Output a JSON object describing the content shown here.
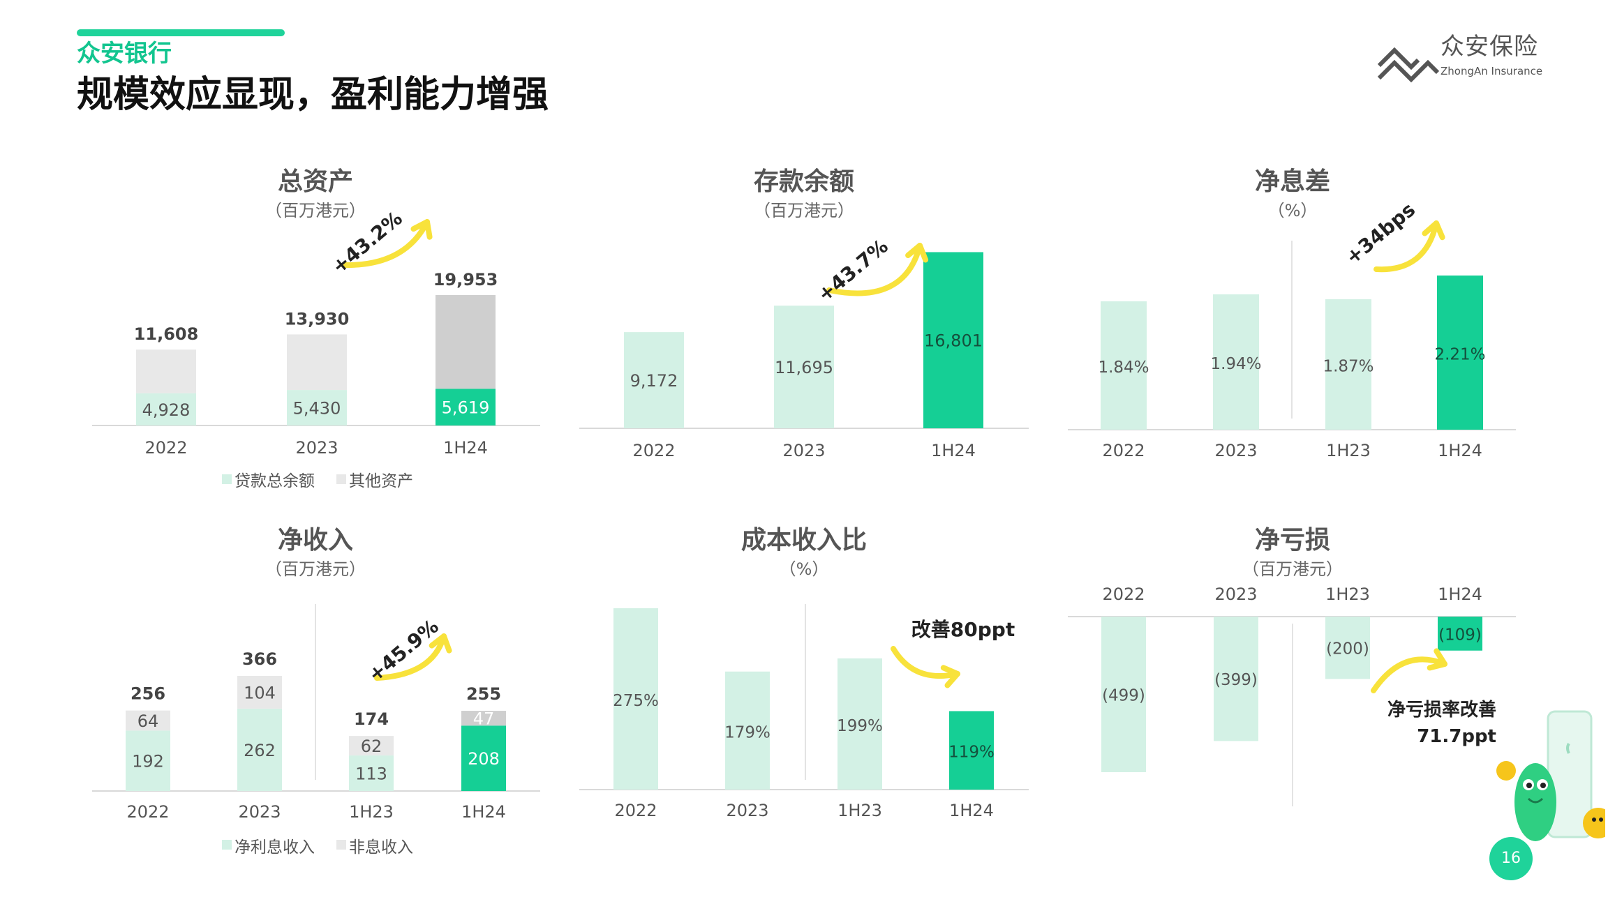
{
  "header": {
    "bank_name": "众安银行",
    "title": "规模效应显现，盈利能力增强"
  },
  "logo": {
    "chinese": "众安保险",
    "english": "ZhongAn Insurance"
  },
  "page_number": "16",
  "colors": {
    "accent": "#1fd39a",
    "dark_green": "#15cf95",
    "light_green": "#d3f1e5",
    "light_gray": "#e8e8e8",
    "mid_gray": "#cfcfcf",
    "arrow_yellow": "#f8e23b",
    "axis": "#d9d9d9"
  },
  "chart_data": [
    {
      "type": "bar",
      "stacked": true,
      "title": "总资产",
      "subtitle": "（百万港元）",
      "categories": [
        "2022",
        "2023",
        "1H24"
      ],
      "totals": [
        "11,608",
        "13,930",
        "19,953"
      ],
      "series": [
        {
          "name": "贷款总余额",
          "values": [
            4928,
            5430,
            5619
          ],
          "labels": [
            "4,928",
            "5,430",
            "5,619"
          ]
        },
        {
          "name": "其他资产",
          "values": [
            6680,
            8500,
            14334
          ]
        }
      ],
      "legend": [
        "贷款总余额",
        "其他资产"
      ],
      "annotation": "+43.2%"
    },
    {
      "type": "bar",
      "title": "存款余额",
      "subtitle": "（百万港元）",
      "categories": [
        "2022",
        "2023",
        "1H24"
      ],
      "values": [
        9172,
        11695,
        16801
      ],
      "labels": [
        "9,172",
        "11,695",
        "16,801"
      ],
      "annotation": "+43.7%"
    },
    {
      "type": "bar",
      "title": "净息差",
      "subtitle": "（%）",
      "categories": [
        "2022",
        "2023",
        "1H23",
        "1H24"
      ],
      "values": [
        1.84,
        1.94,
        1.87,
        2.21
      ],
      "labels": [
        "1.84%",
        "1.94%",
        "1.87%",
        "2.21%"
      ],
      "annotation": "+34bps"
    },
    {
      "type": "bar",
      "stacked": true,
      "title": "净收入",
      "subtitle": "（百万港元）",
      "categories": [
        "2022",
        "2023",
        "1H23",
        "1H24"
      ],
      "totals": [
        "256",
        "366",
        "174",
        "255"
      ],
      "series": [
        {
          "name": "净利息收入",
          "values": [
            192,
            262,
            113,
            208
          ]
        },
        {
          "name": "非息收入",
          "values": [
            64,
            104,
            62,
            47
          ]
        }
      ],
      "legend": [
        "净利息收入",
        "非息收入"
      ],
      "annotation": "+45.9%"
    },
    {
      "type": "bar",
      "title": "成本收入比",
      "subtitle": "（%）",
      "categories": [
        "2022",
        "2023",
        "1H23",
        "1H24"
      ],
      "values": [
        275,
        179,
        199,
        119
      ],
      "labels": [
        "275%",
        "179%",
        "199%",
        "119%"
      ],
      "annotation": "改善80ppt"
    },
    {
      "type": "bar",
      "title": "净亏损",
      "subtitle": "（百万港元）",
      "categories": [
        "2022",
        "2023",
        "1H23",
        "1H24"
      ],
      "values": [
        -499,
        -399,
        -200,
        -109
      ],
      "labels": [
        "(499)",
        "(399)",
        "(200)",
        "(109)"
      ],
      "annotation": [
        "净亏损率改善",
        "71.7ppt"
      ]
    }
  ]
}
